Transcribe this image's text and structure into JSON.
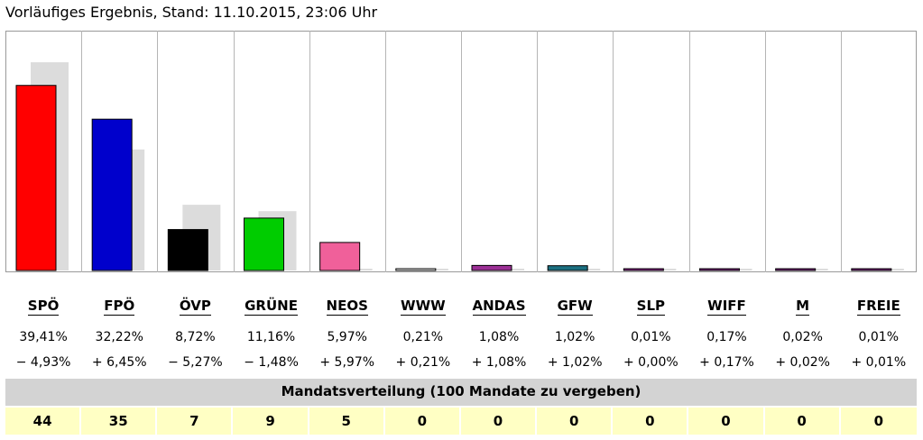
{
  "title": "Vorläufiges Ergebnis, Stand: 11.10.2015, 23:06 Uhr",
  "mandate_header": "Mandatsverteilung (100 Mandate zu vergeben)",
  "chart_data": {
    "type": "bar",
    "categories": [
      "SPÖ",
      "FPÖ",
      "ÖVP",
      "GRÜNE",
      "NEOS",
      "WWW",
      "ANDAS",
      "GFW",
      "SLP",
      "WIFF",
      "M",
      "FREIE"
    ],
    "series": [
      {
        "values": [
          39.41,
          32.22,
          8.72,
          11.16,
          5.97,
          0.21,
          1.08,
          1.02,
          0.01,
          0.17,
          0.02,
          0.01
        ]
      },
      {
        "values": [
          44.34,
          25.77,
          13.99,
          12.64,
          0,
          0,
          0,
          0,
          0.01,
          0,
          0,
          0
        ]
      }
    ],
    "colors": [
      "#ff0000",
      "#0000cc",
      "#000000",
      "#00cc00",
      "#f0609a",
      "#ffffff",
      "#9b2f95",
      "#1b6f80",
      "#8e1f8c",
      "#7a1f7c",
      "#7a1f7c",
      "#7a1f7c"
    ],
    "previous_color": "#dcdcdc",
    "ylim": [
      0,
      48
    ]
  },
  "parties": [
    {
      "name": "SPÖ",
      "pct": "39,41%",
      "diff": "− 4,93%",
      "seats": "44"
    },
    {
      "name": "FPÖ",
      "pct": "32,22%",
      "diff": "+ 6,45%",
      "seats": "35"
    },
    {
      "name": "ÖVP",
      "pct": "8,72%",
      "diff": "− 5,27%",
      "seats": "7"
    },
    {
      "name": "GRÜNE",
      "pct": "11,16%",
      "diff": "− 1,48%",
      "seats": "9"
    },
    {
      "name": "NEOS",
      "pct": "5,97%",
      "diff": "+ 5,97%",
      "seats": "5"
    },
    {
      "name": "WWW",
      "pct": "0,21%",
      "diff": "+ 0,21%",
      "seats": "0"
    },
    {
      "name": "ANDAS",
      "pct": "1,08%",
      "diff": "+ 1,08%",
      "seats": "0"
    },
    {
      "name": "GFW",
      "pct": "1,02%",
      "diff": "+ 1,02%",
      "seats": "0"
    },
    {
      "name": "SLP",
      "pct": "0,01%",
      "diff": "+ 0,00%",
      "seats": "0"
    },
    {
      "name": "WIFF",
      "pct": "0,17%",
      "diff": "+ 0,17%",
      "seats": "0"
    },
    {
      "name": "M",
      "pct": "0,02%",
      "diff": "+ 0,02%",
      "seats": "0"
    },
    {
      "name": "FREIE",
      "pct": "0,01%",
      "diff": "+ 0,01%",
      "seats": "0"
    }
  ]
}
